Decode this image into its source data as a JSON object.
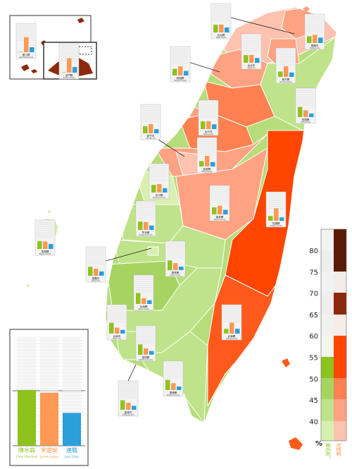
{
  "palette": {
    "chen": "#8ec21f",
    "soong": "#ff9955",
    "lien": "#2a9fd8",
    "chen_shades": [
      "#d9efb0",
      "#bfe38a",
      "#a6d461"
    ],
    "soong_shades": [
      "#ffc2ae",
      "#ffa282",
      "#ff8050",
      "#ff5a1c",
      "#ff4500"
    ],
    "dark_browns": [
      "#8c2a0c",
      "#5a1a08"
    ]
  },
  "legend": {
    "candidates": [
      {
        "name_zh": "陳水扁",
        "name_en": "Chen Shui-bian",
        "color": "#8ec21f",
        "share": 0.39
      },
      {
        "name_zh": "宋楚瑜",
        "name_en": "James Soong",
        "color": "#ff9955",
        "share": 0.37
      },
      {
        "name_zh": "連戰",
        "name_en": "Lien Chan",
        "color": "#2a9fd8",
        "share": 0.23
      }
    ]
  },
  "scale": {
    "percent_symbol": "%",
    "ticks": [
      "80",
      "75",
      "70",
      "65",
      "60",
      "55",
      "50",
      "45",
      "40"
    ],
    "chen_label": "陳水扁",
    "chen_label_en": "Chen Shui-bian",
    "soong_label": "宋楚瑜",
    "soong_label_en": "James Soong"
  },
  "regions": [
    {
      "id": "taipei-city",
      "name": "台北市",
      "name_en": "Taipei City",
      "winner": "soong",
      "shade": 1,
      "chart": {
        "chen": 0.37,
        "soong": 0.38,
        "lien": 0.23
      }
    },
    {
      "id": "keelung",
      "name": "基隆市",
      "name_en": "Keelung City",
      "winner": "soong",
      "shade": 1,
      "chart": {
        "chen": 0.33,
        "soong": 0.4,
        "lien": 0.26
      }
    },
    {
      "id": "taipei-county",
      "name": "台北縣",
      "name_en": "Taipei County",
      "winner": "soong",
      "shade": 0,
      "chart": {
        "chen": 0.37,
        "soong": 0.38,
        "lien": 0.24
      }
    },
    {
      "id": "yilan",
      "name": "宜蘭縣",
      "name_en": "Yilan County",
      "winner": "chen",
      "shade": 1,
      "chart": {
        "chen": 0.49,
        "soong": 0.33,
        "lien": 0.17
      }
    },
    {
      "id": "taoyuan",
      "name": "桃園縣",
      "name_en": "Taoyuan County",
      "winner": "soong",
      "shade": 1,
      "chart": {
        "chen": 0.32,
        "soong": 0.44,
        "lien": 0.22
      }
    },
    {
      "id": "hsinchu-city",
      "name": "新竹市",
      "name_en": "Hsinchu City",
      "winner": "soong",
      "shade": 1,
      "chart": {
        "chen": 0.34,
        "soong": 0.44,
        "lien": 0.2
      }
    },
    {
      "id": "hsinchu-county",
      "name": "新竹縣",
      "name_en": "Hsinchu County",
      "winner": "soong",
      "shade": 2,
      "chart": {
        "chen": 0.26,
        "soong": 0.52,
        "lien": 0.21
      }
    },
    {
      "id": "miaoli",
      "name": "苗栗縣",
      "name_en": "Miaoli County",
      "winner": "soong",
      "shade": 2,
      "chart": {
        "chen": 0.26,
        "soong": 0.51,
        "lien": 0.21
      }
    },
    {
      "id": "taichung-city",
      "name": "台中市",
      "name_en": "Taichung City",
      "winner": "soong",
      "shade": 0,
      "chart": {
        "chen": 0.37,
        "soong": 0.38,
        "lien": 0.23
      }
    },
    {
      "id": "taichung-county",
      "name": "台中縣",
      "name_en": "Taichung County",
      "winner": "soong",
      "shade": 1,
      "chart": {
        "chen": 0.37,
        "soong": 0.41,
        "lien": 0.21
      }
    },
    {
      "id": "changhua",
      "name": "彰化縣",
      "name_en": "Changhua County",
      "winner": "chen",
      "shade": 0,
      "chart": {
        "chen": 0.4,
        "soong": 0.38,
        "lien": 0.21
      }
    },
    {
      "id": "nantou",
      "name": "南投縣",
      "name_en": "Nantou County",
      "winner": "soong",
      "shade": 1,
      "chart": {
        "chen": 0.34,
        "soong": 0.42,
        "lien": 0.22
      }
    },
    {
      "id": "hualien",
      "name": "花蓮縣",
      "name_en": "Hualien County",
      "winner": "soong",
      "shade": 4,
      "chart": {
        "chen": 0.23,
        "soong": 0.6,
        "lien": 0.16
      }
    },
    {
      "id": "yunlin",
      "name": "雲林縣",
      "name_en": "Yunlin County",
      "winner": "chen",
      "shade": 1,
      "chart": {
        "chen": 0.47,
        "soong": 0.34,
        "lien": 0.17
      }
    },
    {
      "id": "chiayi-county",
      "name": "嘉義縣",
      "name_en": "Chiayi County",
      "winner": "chen",
      "shade": 1,
      "chart": {
        "chen": 0.5,
        "soong": 0.28,
        "lien": 0.21
      }
    },
    {
      "id": "chiayi-city",
      "name": "嘉義市",
      "name_en": "Chiayi City",
      "winner": "chen",
      "shade": 0,
      "chart": {
        "chen": 0.43,
        "soong": 0.34,
        "lien": 0.21
      }
    },
    {
      "id": "tainan-county",
      "name": "台南縣",
      "name_en": "Tainan County",
      "winner": "chen",
      "shade": 2,
      "chart": {
        "chen": 0.53,
        "soong": 0.28,
        "lien": 0.18
      }
    },
    {
      "id": "tainan-city",
      "name": "台南市",
      "name_en": "Tainan City",
      "winner": "chen",
      "shade": 2,
      "chart": {
        "chen": 0.52,
        "soong": 0.29,
        "lien": 0.18
      }
    },
    {
      "id": "kaohsiung-city",
      "name": "高雄市",
      "name_en": "Kaohsiung City",
      "winner": "chen",
      "shade": 1,
      "chart": {
        "chen": 0.46,
        "soong": 0.34,
        "lien": 0.19
      }
    },
    {
      "id": "kaohsiung-county",
      "name": "高雄縣",
      "name_en": "Kaohsiung County",
      "winner": "chen",
      "shade": 1,
      "chart": {
        "chen": 0.5,
        "soong": 0.31,
        "lien": 0.18
      }
    },
    {
      "id": "pingtung",
      "name": "屏東縣",
      "name_en": "Pingtung County",
      "winner": "chen",
      "shade": 1,
      "chart": {
        "chen": 0.49,
        "soong": 0.33,
        "lien": 0.17
      }
    },
    {
      "id": "taitung",
      "name": "台東縣",
      "name_en": "Taitung County",
      "winner": "soong",
      "shade": 3,
      "chart": {
        "chen": 0.23,
        "soong": 0.53,
        "lien": 0.23
      }
    },
    {
      "id": "penghu",
      "name": "澎湖縣",
      "name_en": "Penghu County",
      "winner": "chen",
      "shade": 0,
      "chart": {
        "chen": 0.38,
        "soong": 0.36,
        "lien": 0.24
      }
    },
    {
      "id": "kinmen",
      "name": "金門縣",
      "name_en": "Kinmen County",
      "winner": "soong",
      "shade": 4,
      "chart": {
        "chen": 0.02,
        "soong": 0.7,
        "lien": 0.27
      }
    },
    {
      "id": "lienchiang",
      "name": "連江縣",
      "name_en": "Lienchiang County",
      "winner": "soong",
      "shade": 4,
      "chart": {
        "chen": 0.02,
        "soong": 0.73,
        "lien": 0.24
      }
    }
  ]
}
